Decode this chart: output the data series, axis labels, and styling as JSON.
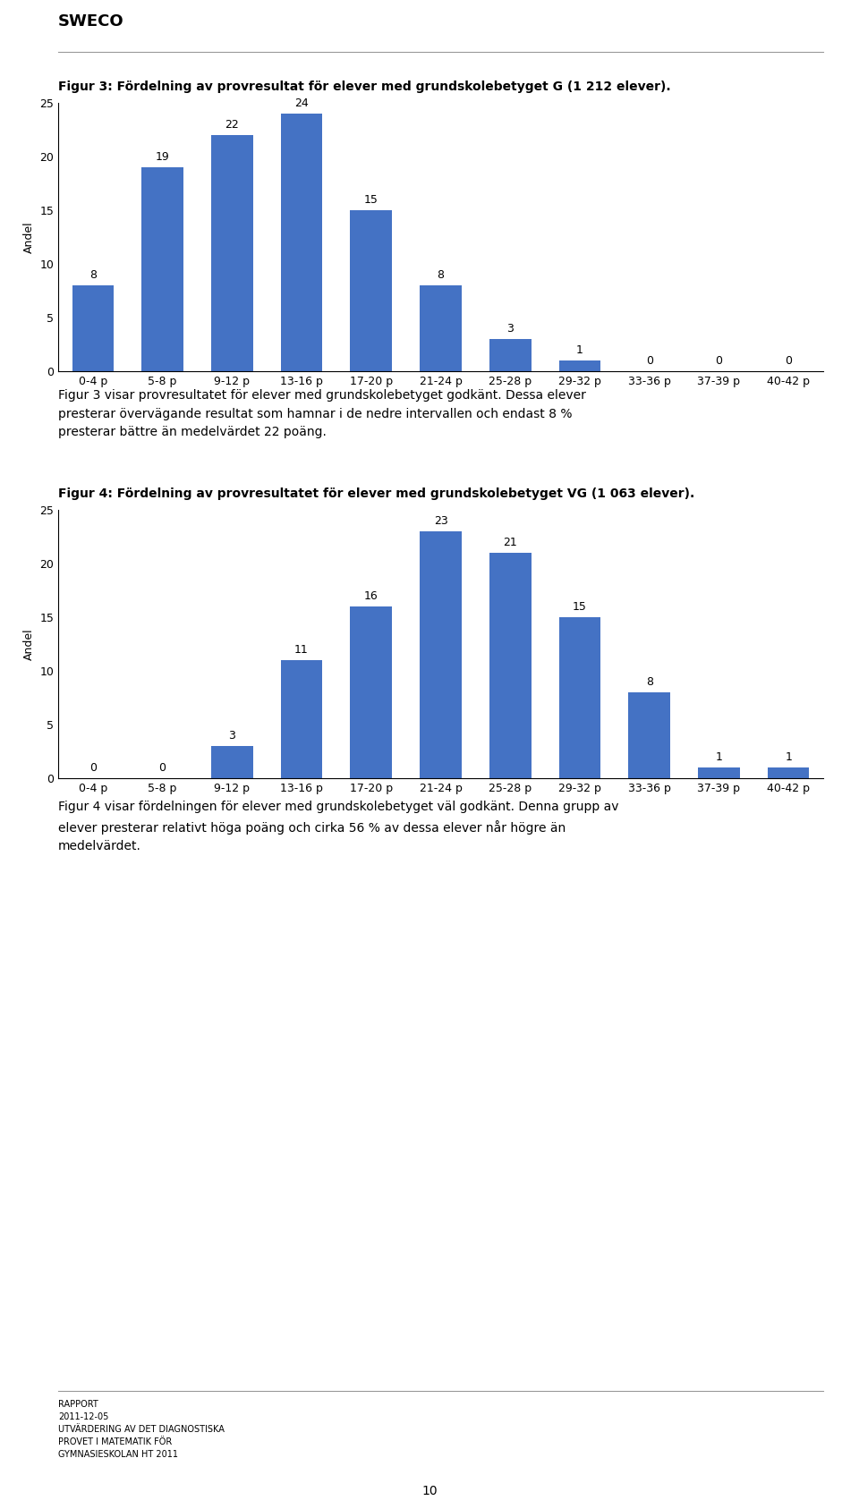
{
  "fig1_title": "Figur 3: Fördelning av provresultat för elever med grundskolebetyget G (1 212 elever).",
  "fig2_title": "Figur 4: Fördelning av provresultatet för elever med grundskolebetyget VG (1 063 elever).",
  "categories": [
    "0-4 p",
    "5-8 p",
    "9-12 p",
    "13-16 p",
    "17-20 p",
    "21-24 p",
    "25-28 p",
    "29-32 p",
    "33-36 p",
    "37-39 p",
    "40-42 p"
  ],
  "fig1_values": [
    8,
    19,
    22,
    24,
    15,
    8,
    3,
    1,
    0,
    0,
    0
  ],
  "fig2_values": [
    0,
    0,
    3,
    11,
    16,
    23,
    21,
    15,
    8,
    1,
    1
  ],
  "bar_color": "#4472C4",
  "ylabel": "Andel",
  "ylim": [
    0,
    25
  ],
  "yticks": [
    0,
    5,
    10,
    15,
    20,
    25
  ],
  "text1": "Figur 3 visar provresultatet för elever med grundskolebetyget godkänt. Dessa elever\npresterar övervägande resultat som hamnar i de nedre intervallen och endast 8 %\npresterar bättre än medelvärdet 22 poäng.",
  "text2": "Figur 4 visar fördelningen för elever med grundskolebetyget väl godkänt. Denna grupp av\nelever presterar relativt höga poäng och cirka 56 % av dessa elever når högre än\nmedelvärdet.",
  "footer_text": "RAPPORT\n2011-12-05\nUTVÄRDERING AV DET DIAGNOSTISKA\nPROVET I MATEMATIK FÖR\nGYMNASIESKOLAN HT 2011",
  "page_number": "10",
  "background_color": "#ffffff",
  "title_fontsize": 10,
  "bar_label_fontsize": 9,
  "axis_fontsize": 9,
  "ylabel_fontsize": 9,
  "text_fontsize": 10,
  "footer_fontsize": 7
}
